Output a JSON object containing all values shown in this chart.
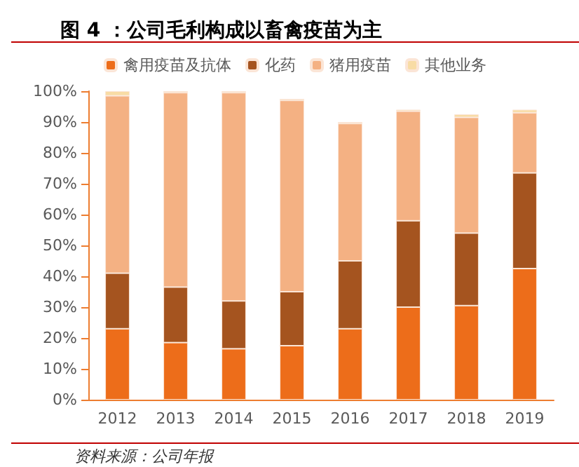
{
  "chart_data": {
    "type": "bar",
    "stacked": true,
    "title": "图 4 ：公司毛利构成以畜禽疫苗为主",
    "annotations": [
      "资料来源：公司年报"
    ],
    "categories": [
      "2012",
      "2013",
      "2014",
      "2015",
      "2016",
      "2017",
      "2018",
      "2019"
    ],
    "series": [
      {
        "name": "禽用疫苗及抗体",
        "color": "#ed6d1a",
        "values": [
          23,
          18.5,
          16.5,
          17.5,
          23,
          30,
          30.5,
          42.5
        ]
      },
      {
        "name": "化药",
        "color": "#a5541f",
        "values": [
          18,
          18,
          15.5,
          17.5,
          22,
          28,
          23.5,
          31
        ]
      },
      {
        "name": "猪用疫苗",
        "color": "#f4b183",
        "values": [
          57.5,
          63,
          67.5,
          62,
          44.5,
          35.5,
          37.5,
          19.5
        ]
      },
      {
        "name": "其他业务",
        "color": "#f8dca5",
        "values": [
          1.5,
          0.5,
          0.5,
          0.5,
          0.5,
          0.5,
          1,
          1
        ]
      }
    ],
    "ylim": [
      0,
      100
    ],
    "yticks": [
      {
        "value": 0,
        "label": "0%"
      },
      {
        "value": 10,
        "label": "10%"
      },
      {
        "value": 20,
        "label": "20%"
      },
      {
        "value": 30,
        "label": "30%"
      },
      {
        "value": 40,
        "label": "40%"
      },
      {
        "value": 50,
        "label": "50%"
      },
      {
        "value": 60,
        "label": "60%"
      },
      {
        "value": 70,
        "label": "70%"
      },
      {
        "value": 80,
        "label": "80%"
      },
      {
        "value": 90,
        "label": "90%"
      },
      {
        "value": 100,
        "label": "100%"
      }
    ],
    "grid": false,
    "legend": "top"
  }
}
